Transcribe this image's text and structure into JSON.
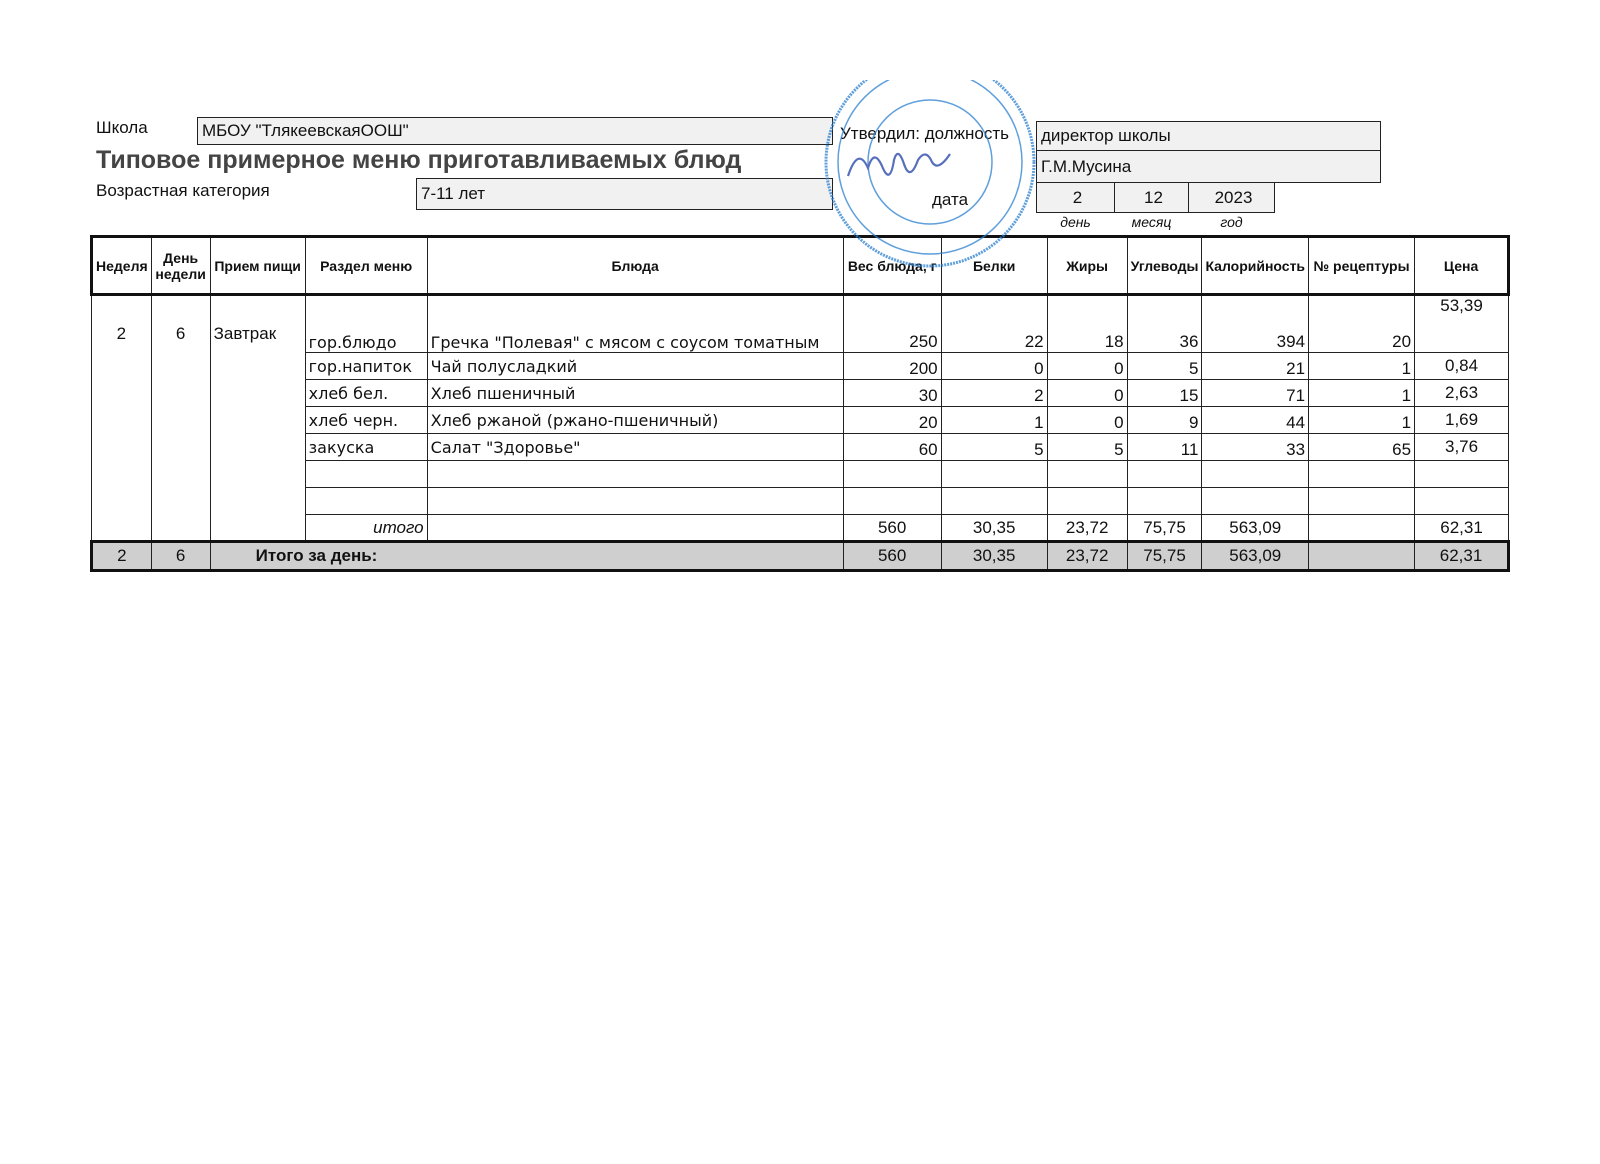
{
  "header": {
    "school_label": "Школа",
    "school_value": "МБОУ \"ТлякеевскаяООШ\"",
    "title": "Типовое примерное меню приготавливаемых блюд",
    "age_label": "Возрастная категория",
    "age_value": "7-11 лет",
    "approved_label": "Утвердил: должность",
    "position_value": "директор школы",
    "name_value": "Г.М.Мусина",
    "date_label": "дата",
    "date_day": "2",
    "date_month": "12",
    "date_year": "2023",
    "day_label": "день",
    "month_label": "месяц",
    "year_label": "год"
  },
  "stamp": {
    "text": "МБОУ «Тлякеевская ООШ»",
    "color": "#2a7fd0",
    "signature": "Мусина"
  },
  "table": {
    "columns": [
      "Неделя",
      "День недели",
      "Прием пищи",
      "Раздел меню",
      "Блюда",
      "Вес блюда, г",
      "Белки",
      "Жиры",
      "Углеводы",
      "Калорийность",
      "№ рецептуры",
      "Цена"
    ],
    "week": "2",
    "day": "6",
    "meal": "Завтрак",
    "rows": [
      {
        "section": "гор.блюдо",
        "dish": "Гречка \"Полевая\" с мясом с соусом томатным",
        "weight": "250",
        "protein": "22",
        "fat": "18",
        "carbs": "36",
        "kcal": "394",
        "recipe": "20",
        "price": "53,39"
      },
      {
        "section": "гор.напиток",
        "dish": "Чай полусладкий",
        "weight": "200",
        "protein": "0",
        "fat": "0",
        "carbs": "5",
        "kcal": "21",
        "recipe": "1",
        "price": "0,84"
      },
      {
        "section": "хлеб бел.",
        "dish": "Хлеб пшеничный",
        "weight": "30",
        "protein": "2",
        "fat": "0",
        "carbs": "15",
        "kcal": "71",
        "recipe": "1",
        "price": "2,63"
      },
      {
        "section": "хлеб черн.",
        "dish": "Хлеб ржаной (ржано-пшеничный)",
        "weight": "20",
        "protein": "1",
        "fat": "0",
        "carbs": "9",
        "kcal": "44",
        "recipe": "1",
        "price": "1,69"
      },
      {
        "section": "закуска",
        "dish": "Салат \"Здоровье\"",
        "weight": "60",
        "protein": "5",
        "fat": "5",
        "carbs": "11",
        "kcal": "33",
        "recipe": "65",
        "price": "3,76"
      }
    ],
    "subtotal": {
      "label": "итого",
      "weight": "560",
      "protein": "30,35",
      "fat": "23,72",
      "carbs": "75,75",
      "kcal": "563,09",
      "price": "62,31"
    },
    "day_total": {
      "week": "2",
      "day": "6",
      "label": "Итого за день:",
      "weight": "560",
      "protein": "30,35",
      "fat": "23,72",
      "carbs": "75,75",
      "kcal": "563,09",
      "price": "62,31"
    }
  }
}
